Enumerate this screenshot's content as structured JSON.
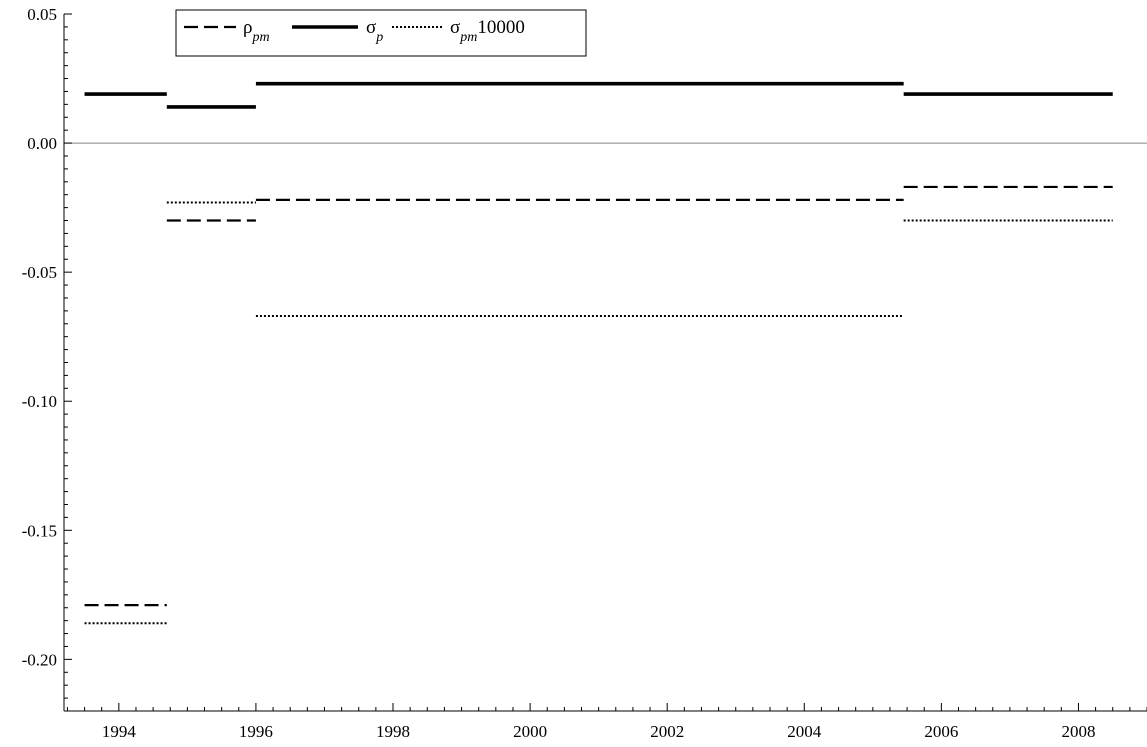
{
  "chart_data": {
    "type": "line",
    "title": "",
    "xlabel": "",
    "ylabel": "",
    "xlim": [
      1993.2,
      2009.0
    ],
    "ylim": [
      -0.22,
      0.05
    ],
    "x_ticks": [
      1994,
      1996,
      1998,
      2000,
      2002,
      2004,
      2006,
      2008
    ],
    "x_tick_labels": [
      "1994",
      "1996",
      "1998",
      "2000",
      "2002",
      "2004",
      "2006",
      "2008"
    ],
    "y_ticks": [
      0.05,
      0.0,
      -0.05,
      -0.1,
      -0.15,
      -0.2
    ],
    "y_tick_labels": [
      "0.05",
      "0.00",
      "-0.05",
      "-0.10",
      "-0.15",
      "-0.20"
    ],
    "zero_line": true,
    "grid": false,
    "legend_position": "top-left",
    "series": [
      {
        "name": "ρ_pm",
        "legend_main": "ρ",
        "legend_sub": "pm",
        "legend_suffix": "",
        "style": "dashed",
        "segments": [
          {
            "x0": 1993.5,
            "x1": 1994.7,
            "y": -0.179
          },
          {
            "x0": 1994.7,
            "x1": 1996.0,
            "y": -0.03
          },
          {
            "x0": 1996.0,
            "x1": 2005.45,
            "y": -0.022
          },
          {
            "x0": 2005.45,
            "x1": 2008.5,
            "y": -0.017
          }
        ]
      },
      {
        "name": "σ_p",
        "legend_main": "σ",
        "legend_sub": "p",
        "legend_suffix": "",
        "style": "solid",
        "segments": [
          {
            "x0": 1993.5,
            "x1": 1994.7,
            "y": 0.019
          },
          {
            "x0": 1994.7,
            "x1": 1996.0,
            "y": 0.014
          },
          {
            "x0": 1996.0,
            "x1": 2005.45,
            "y": 0.023
          },
          {
            "x0": 2005.45,
            "x1": 2008.5,
            "y": 0.019
          }
        ]
      },
      {
        "name": "σ_pm10000",
        "legend_main": "σ",
        "legend_sub": "pm",
        "legend_suffix": "10000",
        "style": "dotted",
        "segments": [
          {
            "x0": 1993.5,
            "x1": 1994.7,
            "y": -0.186
          },
          {
            "x0": 1994.7,
            "x1": 1996.0,
            "y": -0.023
          },
          {
            "x0": 1996.0,
            "x1": 2005.45,
            "y": -0.067
          },
          {
            "x0": 2005.45,
            "x1": 2008.5,
            "y": -0.03
          }
        ]
      }
    ]
  }
}
